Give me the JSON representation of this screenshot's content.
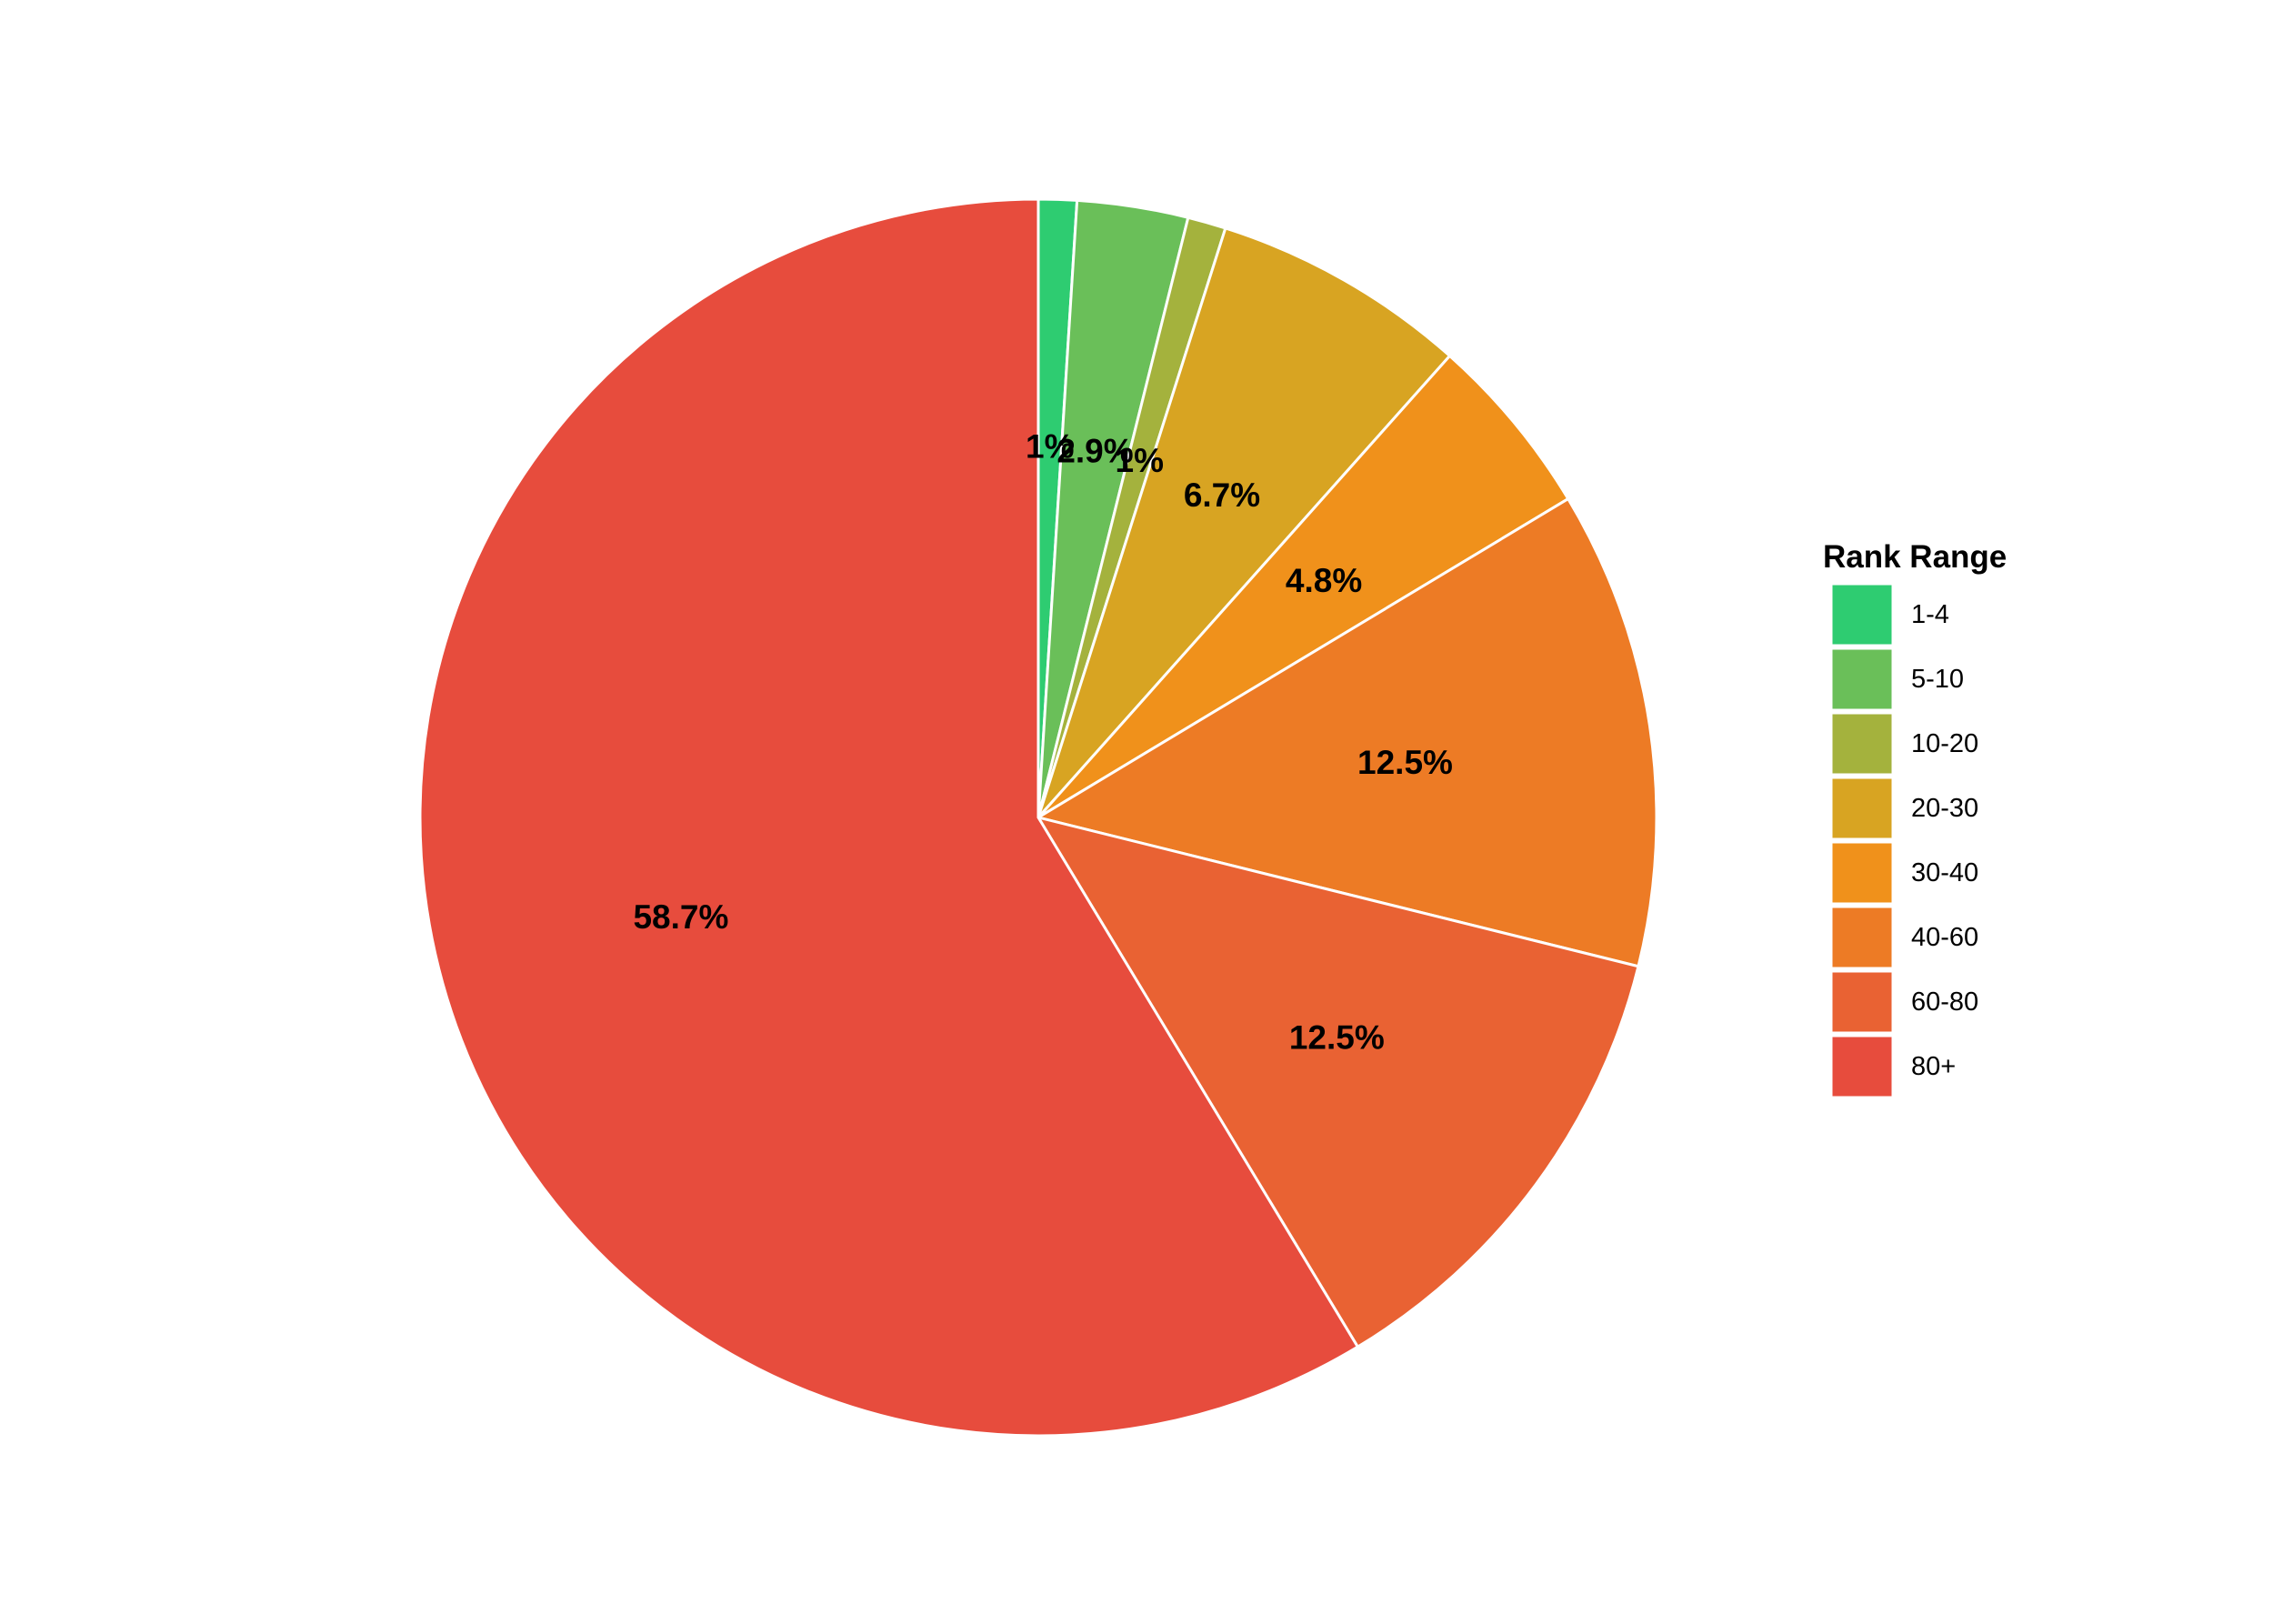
{
  "chart_data": {
    "type": "pie",
    "title": "",
    "legend_title": "Rank Range",
    "legend_position": "right",
    "start_angle": "12 o'clock",
    "direction": "clockwise",
    "labels": [
      "1-4",
      "5-10",
      "10-20",
      "20-30",
      "30-40",
      "40-60",
      "60-80",
      "80+"
    ],
    "values": [
      1.0,
      2.9,
      1.0,
      6.7,
      4.8,
      12.5,
      12.5,
      58.7
    ],
    "value_labels": [
      "1%",
      "2.9%",
      "1%",
      "6.7%",
      "4.8%",
      "12.5%",
      "12.5%",
      "58.7%"
    ],
    "colors": [
      "#2ecc71",
      "#6abf59",
      "#a4b23d",
      "#d8a422",
      "#f0911b",
      "#ed7b25",
      "#e96233",
      "#e74c3d"
    ],
    "slice_border_color": "#ffffff"
  }
}
